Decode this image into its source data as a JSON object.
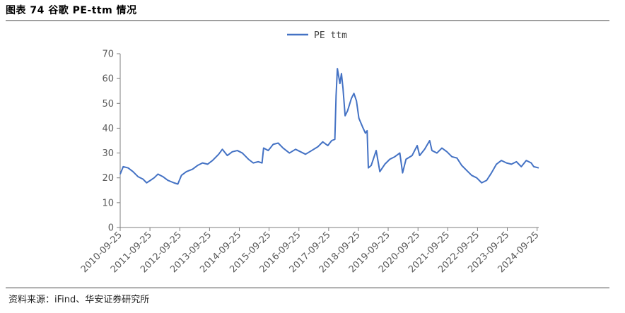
{
  "header": {
    "title": "图表 74  谷歌 PE-ttm 情况"
  },
  "footer": {
    "source": "资料来源：iFind、华安证券研究所"
  },
  "colors": {
    "series": "#4472C4",
    "axis": "#7f7f7f",
    "text": "#595959"
  },
  "chart_data": {
    "type": "line",
    "title": "",
    "xlabel": "",
    "ylabel": "",
    "ylim": [
      0,
      70
    ],
    "yticks": [
      0,
      10,
      20,
      30,
      40,
      50,
      60,
      70
    ],
    "x_start": "2010-09-25",
    "x_end": "2024-10-15",
    "xticks": [
      "2010-09-25",
      "2011-09-25",
      "2012-09-25",
      "2013-09-25",
      "2014-09-25",
      "2015-09-25",
      "2016-09-25",
      "2017-09-25",
      "2018-09-25",
      "2019-09-25",
      "2020-09-25",
      "2021-09-25",
      "2022-09-25",
      "2023-09-25",
      "2024-09-25"
    ],
    "grid": false,
    "legend_position": "top-center",
    "series": [
      {
        "name": "PE ttm",
        "points": [
          [
            "2010-09-25",
            21.5
          ],
          [
            "2010-11-01",
            24.5
          ],
          [
            "2011-01-01",
            24.0
          ],
          [
            "2011-03-01",
            22.5
          ],
          [
            "2011-05-01",
            20.5
          ],
          [
            "2011-07-01",
            19.5
          ],
          [
            "2011-08-15",
            18.0
          ],
          [
            "2011-10-01",
            19.0
          ],
          [
            "2011-11-15",
            20.0
          ],
          [
            "2012-01-01",
            21.5
          ],
          [
            "2012-03-01",
            20.5
          ],
          [
            "2012-05-01",
            19.0
          ],
          [
            "2012-07-15",
            18.0
          ],
          [
            "2012-09-01",
            17.5
          ],
          [
            "2012-10-15",
            21.0
          ],
          [
            "2012-12-15",
            22.5
          ],
          [
            "2013-03-01",
            23.5
          ],
          [
            "2013-05-01",
            25.0
          ],
          [
            "2013-07-01",
            26.0
          ],
          [
            "2013-09-01",
            25.5
          ],
          [
            "2013-11-01",
            27.0
          ],
          [
            "2014-01-15",
            29.5
          ],
          [
            "2014-03-01",
            31.5
          ],
          [
            "2014-05-01",
            29.0
          ],
          [
            "2014-07-01",
            30.5
          ],
          [
            "2014-09-01",
            31.0
          ],
          [
            "2014-11-01",
            30.0
          ],
          [
            "2015-01-15",
            27.5
          ],
          [
            "2015-03-15",
            26.0
          ],
          [
            "2015-05-15",
            26.5
          ],
          [
            "2015-07-01",
            26.0
          ],
          [
            "2015-07-20",
            32.0
          ],
          [
            "2015-09-15",
            31.0
          ],
          [
            "2015-11-15",
            33.5
          ],
          [
            "2016-01-15",
            34.0
          ],
          [
            "2016-03-15",
            32.0
          ],
          [
            "2016-06-01",
            30.0
          ],
          [
            "2016-08-15",
            31.5
          ],
          [
            "2016-10-15",
            30.5
          ],
          [
            "2016-12-15",
            29.5
          ],
          [
            "2017-03-01",
            31.0
          ],
          [
            "2017-05-15",
            32.5
          ],
          [
            "2017-07-15",
            34.5
          ],
          [
            "2017-09-15",
            33.0
          ],
          [
            "2017-11-01",
            35.0
          ],
          [
            "2017-12-10",
            35.5
          ],
          [
            "2017-12-25",
            53.0
          ],
          [
            "2018-01-10",
            64.0
          ],
          [
            "2018-02-10",
            58.0
          ],
          [
            "2018-03-01",
            62.0
          ],
          [
            "2018-03-20",
            56.0
          ],
          [
            "2018-04-15",
            45.0
          ],
          [
            "2018-05-15",
            47.0
          ],
          [
            "2018-07-01",
            52.0
          ],
          [
            "2018-08-01",
            54.0
          ],
          [
            "2018-09-01",
            51.0
          ],
          [
            "2018-10-01",
            44.0
          ],
          [
            "2018-11-15",
            40.5
          ],
          [
            "2018-12-20",
            38.0
          ],
          [
            "2019-01-10",
            39.0
          ],
          [
            "2019-01-25",
            24.0
          ],
          [
            "2019-03-01",
            25.0
          ],
          [
            "2019-05-01",
            31.0
          ],
          [
            "2019-06-15",
            22.5
          ],
          [
            "2019-08-15",
            25.5
          ],
          [
            "2019-10-15",
            27.5
          ],
          [
            "2019-12-15",
            28.5
          ],
          [
            "2020-02-15",
            30.0
          ],
          [
            "2020-03-20",
            22.0
          ],
          [
            "2020-05-01",
            27.5
          ],
          [
            "2020-07-15",
            29.0
          ],
          [
            "2020-09-15",
            33.0
          ],
          [
            "2020-10-15",
            29.0
          ],
          [
            "2020-12-15",
            31.5
          ],
          [
            "2021-02-15",
            35.0
          ],
          [
            "2021-03-15",
            31.0
          ],
          [
            "2021-05-15",
            30.0
          ],
          [
            "2021-07-15",
            32.0
          ],
          [
            "2021-09-15",
            30.5
          ],
          [
            "2021-11-15",
            28.5
          ],
          [
            "2022-01-15",
            28.0
          ],
          [
            "2022-03-15",
            25.0
          ],
          [
            "2022-05-15",
            23.0
          ],
          [
            "2022-07-15",
            21.0
          ],
          [
            "2022-09-15",
            20.0
          ],
          [
            "2022-11-15",
            18.0
          ],
          [
            "2023-01-15",
            19.0
          ],
          [
            "2023-03-15",
            22.0
          ],
          [
            "2023-05-15",
            25.5
          ],
          [
            "2023-07-15",
            27.0
          ],
          [
            "2023-09-15",
            26.0
          ],
          [
            "2023-11-15",
            25.5
          ],
          [
            "2024-01-15",
            26.5
          ],
          [
            "2024-03-15",
            24.5
          ],
          [
            "2024-05-15",
            27.0
          ],
          [
            "2024-07-15",
            26.0
          ],
          [
            "2024-08-15",
            24.5
          ],
          [
            "2024-10-15",
            24.0
          ]
        ]
      }
    ]
  }
}
